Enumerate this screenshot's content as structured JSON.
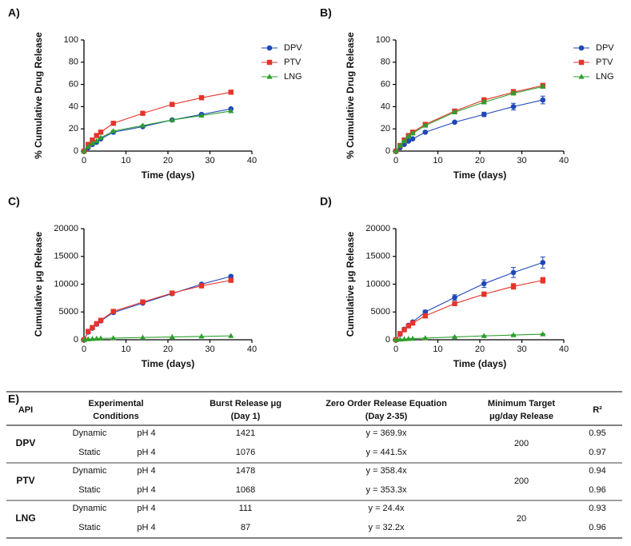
{
  "chart_data": [
    {
      "type": "line",
      "panel": "A)",
      "ylabel": "% Cumulative Drug Release",
      "xlabel": "Time (days)",
      "x": [
        0,
        1,
        2,
        3,
        4,
        7,
        14,
        21,
        28,
        35
      ],
      "xlim": [
        0,
        40
      ],
      "xticks": [
        0,
        10,
        20,
        30,
        40
      ],
      "ylim": [
        0,
        100
      ],
      "yticks": [
        0,
        20,
        40,
        60,
        80,
        100
      ],
      "legend": "right",
      "series": [
        {
          "name": "DPV",
          "color": "#1f47b8",
          "marker": "circle",
          "values": [
            0,
            3,
            6,
            8,
            11,
            17,
            22,
            28,
            33,
            38
          ]
        },
        {
          "name": "PTV",
          "color": "#e5342a",
          "marker": "square",
          "values": [
            0,
            6,
            10,
            14,
            17,
            25,
            34,
            42,
            48,
            53
          ]
        },
        {
          "name": "LNG",
          "color": "#2ca02c",
          "marker": "triangle",
          "values": [
            0,
            4,
            7,
            9,
            12,
            18,
            23,
            28,
            32,
            36
          ]
        }
      ]
    },
    {
      "type": "line",
      "panel": "B)",
      "ylabel": "% Cumulative Drug Release",
      "xlabel": "Time (days)",
      "x": [
        0,
        1,
        2,
        3,
        4,
        7,
        14,
        21,
        28,
        35
      ],
      "xlim": [
        0,
        40
      ],
      "xticks": [
        0,
        10,
        20,
        30,
        40
      ],
      "ylim": [
        0,
        100
      ],
      "yticks": [
        0,
        20,
        40,
        60,
        80,
        100
      ],
      "legend": "right",
      "series": [
        {
          "name": "DPV",
          "color": "#1f47b8",
          "marker": "circle",
          "values": [
            0,
            3,
            6,
            9,
            11,
            17,
            26,
            33,
            40,
            46
          ],
          "errors": [
            0,
            0.5,
            0.5,
            0.8,
            1,
            1,
            1,
            2,
            3,
            3.5
          ]
        },
        {
          "name": "PTV",
          "color": "#e5342a",
          "marker": "square",
          "values": [
            0,
            5,
            10,
            14,
            17,
            24,
            36,
            46,
            53,
            59
          ],
          "errors": [
            0,
            0.5,
            0.5,
            0.8,
            1,
            1,
            1.5,
            2,
            2.5,
            2
          ]
        },
        {
          "name": "LNG",
          "color": "#2ca02c",
          "marker": "triangle",
          "values": [
            0,
            5,
            9,
            13,
            16,
            23,
            35,
            44,
            52,
            58
          ],
          "errors": [
            0,
            0.5,
            0.5,
            0.5,
            0.8,
            1,
            1,
            1.5,
            1.5,
            1.5
          ]
        }
      ]
    },
    {
      "type": "line",
      "panel": "C)",
      "ylabel": "Cumulative μg Release",
      "xlabel": "Time (days)",
      "x": [
        0,
        1,
        2,
        3,
        4,
        7,
        14,
        21,
        28,
        35
      ],
      "xlim": [
        0,
        40
      ],
      "xticks": [
        0,
        10,
        20,
        30,
        40
      ],
      "ylim": [
        0,
        20000
      ],
      "yticks": [
        0,
        5000,
        10000,
        15000,
        20000
      ],
      "series": [
        {
          "name": "DPV",
          "color": "#1f47b8",
          "marker": "circle",
          "values": [
            0,
            1400,
            2100,
            2800,
            3400,
            4900,
            6600,
            8300,
            10000,
            11400
          ]
        },
        {
          "name": "PTV",
          "color": "#e5342a",
          "marker": "square",
          "values": [
            0,
            1500,
            2200,
            2900,
            3500,
            5100,
            6800,
            8400,
            9700,
            10700
          ]
        },
        {
          "name": "LNG",
          "color": "#2ca02c",
          "marker": "triangle",
          "values": [
            0,
            100,
            150,
            200,
            250,
            300,
            400,
            500,
            600,
            700
          ]
        }
      ]
    },
    {
      "type": "line",
      "panel": "D)",
      "ylabel": "Cumulative μg Release",
      "xlabel": "Time (days)",
      "x": [
        0,
        1,
        2,
        3,
        4,
        7,
        14,
        21,
        28,
        35
      ],
      "xlim": [
        0,
        40
      ],
      "xticks": [
        0,
        10,
        20,
        30,
        40
      ],
      "ylim": [
        0,
        20000
      ],
      "yticks": [
        0,
        5000,
        10000,
        15000,
        20000
      ],
      "series": [
        {
          "name": "DPV",
          "color": "#1f47b8",
          "marker": "circle",
          "values": [
            0,
            1000,
            1900,
            2600,
            3200,
            5000,
            7600,
            10100,
            12100,
            13900
          ],
          "errors": [
            0,
            50,
            80,
            100,
            120,
            300,
            500,
            700,
            900,
            1000
          ]
        },
        {
          "name": "PTV",
          "color": "#e5342a",
          "marker": "square",
          "values": [
            0,
            1100,
            1800,
            2500,
            3000,
            4300,
            6500,
            8200,
            9600,
            10700
          ],
          "errors": [
            0,
            50,
            60,
            80,
            100,
            200,
            300,
            400,
            500,
            500
          ]
        },
        {
          "name": "LNG",
          "color": "#2ca02c",
          "marker": "triangle",
          "values": [
            0,
            50,
            100,
            150,
            200,
            300,
            500,
            700,
            850,
            1000
          ],
          "errors": [
            0,
            20,
            20,
            30,
            30,
            40,
            50,
            60,
            60,
            80
          ]
        }
      ]
    }
  ],
  "table": {
    "label": "E)",
    "headers": [
      [
        "API"
      ],
      [
        "Experimental",
        "Conditions"
      ],
      [
        "Burst Release μg",
        "(Day 1)"
      ],
      [
        "Zero Order Release Equation",
        "(Day 2-35)"
      ],
      [
        "Minimum Target",
        "μg/day Release"
      ],
      [
        "R²"
      ]
    ],
    "groups": [
      {
        "api": "DPV",
        "color": "#1f47b8",
        "target": 200,
        "rows": [
          [
            "Dynamic",
            "pH 4",
            1421,
            "y = 369.9x",
            0.95
          ],
          [
            "Static",
            "pH 4",
            1076,
            "y = 441.5x",
            0.97
          ]
        ]
      },
      {
        "api": "PTV",
        "color": "#e5342a",
        "target": 200,
        "rows": [
          [
            "Dynamic",
            "pH 4",
            1478,
            "y = 358.4x",
            0.94
          ],
          [
            "Static",
            "pH 4",
            1068,
            "y = 353.3x",
            0.96
          ]
        ]
      },
      {
        "api": "LNG",
        "color": "#2ca02c",
        "target": 20,
        "rows": [
          [
            "Dynamic",
            "pH 4",
            111,
            "y = 24.4x",
            0.93
          ],
          [
            "Static",
            "pH 4",
            87,
            "y = 32.2x",
            0.96
          ]
        ]
      }
    ]
  }
}
